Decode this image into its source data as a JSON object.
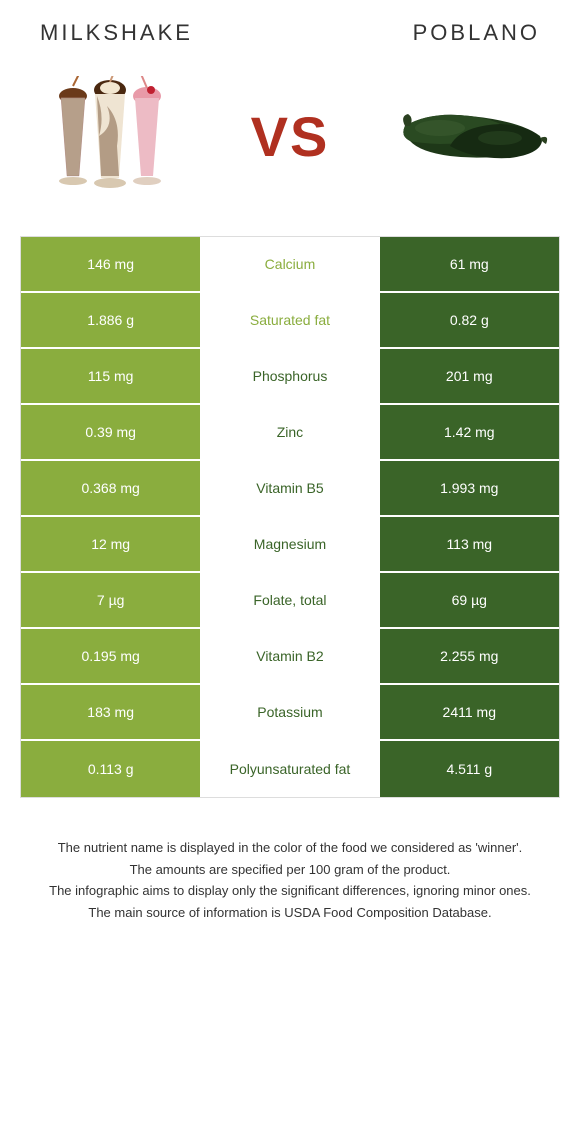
{
  "header": {
    "left_title": "MILKSHAKE",
    "right_title": "POBLANO",
    "vs": "VS"
  },
  "colors": {
    "left_bg": "#8aad3e",
    "right_bg": "#3a6428",
    "vs_color": "#b03020",
    "left_text": "#ffffff",
    "right_text": "#ffffff",
    "mid_bg": "#ffffff"
  },
  "rows": [
    {
      "left": "146 mg",
      "mid": "Calcium",
      "right": "61 mg",
      "winner": "left"
    },
    {
      "left": "1.886 g",
      "mid": "Saturated fat",
      "right": "0.82 g",
      "winner": "left"
    },
    {
      "left": "115 mg",
      "mid": "Phosphorus",
      "right": "201 mg",
      "winner": "right"
    },
    {
      "left": "0.39 mg",
      "mid": "Zinc",
      "right": "1.42 mg",
      "winner": "right"
    },
    {
      "left": "0.368 mg",
      "mid": "Vitamin B5",
      "right": "1.993 mg",
      "winner": "right"
    },
    {
      "left": "12 mg",
      "mid": "Magnesium",
      "right": "113 mg",
      "winner": "right"
    },
    {
      "left": "7 µg",
      "mid": "Folate, total",
      "right": "69 µg",
      "winner": "right"
    },
    {
      "left": "0.195 mg",
      "mid": "Vitamin B2",
      "right": "2.255 mg",
      "winner": "right"
    },
    {
      "left": "183 mg",
      "mid": "Potassium",
      "right": "2411 mg",
      "winner": "right"
    },
    {
      "left": "0.113 g",
      "mid": "Polyunsaturated fat",
      "right": "4.511 g",
      "winner": "right"
    }
  ],
  "footer": {
    "line1": "The nutrient name is displayed in the color of the food we considered as 'winner'.",
    "line2": "The amounts are specified per 100 gram of the product.",
    "line3": "The infographic aims to display only the significant differences, ignoring minor ones.",
    "line4": "The main source of information is USDA Food Composition Database."
  }
}
